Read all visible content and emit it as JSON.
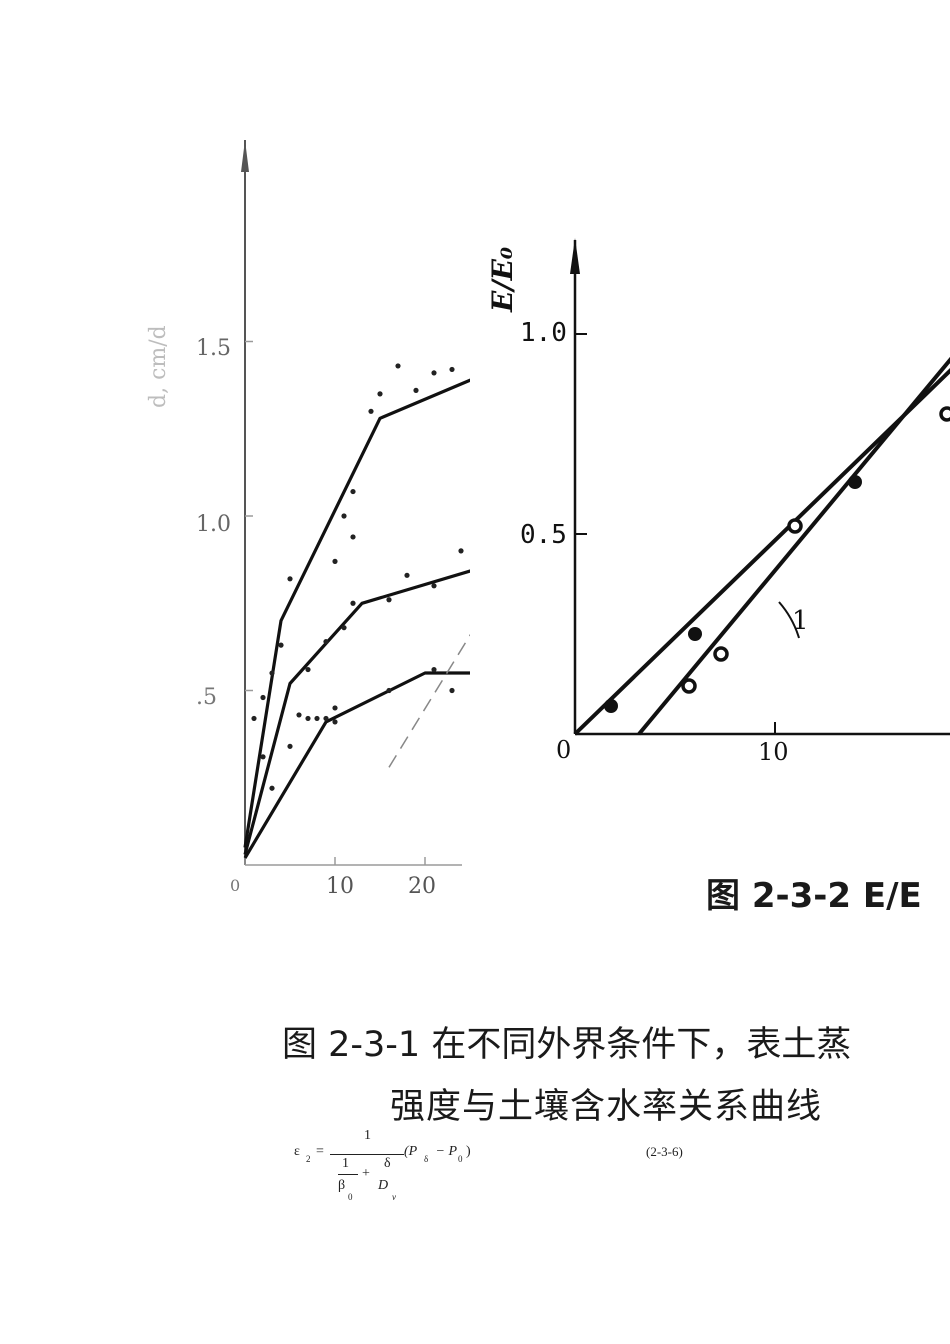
{
  "figure_left": {
    "y_axis_label": "d, cm/d",
    "y_ticks": [
      "1.5",
      "1.0",
      ".5"
    ],
    "x_ticks": [
      "0",
      "10",
      "20"
    ]
  },
  "figure_right": {
    "y_axis_label": "E/E₀",
    "y_ticks": [
      "1.0",
      "0.5"
    ],
    "x_ticks": [
      "0",
      "10"
    ],
    "curve_label": "1",
    "caption": "图 2-3-2    E/E"
  },
  "caption_main": {
    "line1": "图 2-3-1   在不同外界条件下，表土蒸",
    "line2": "强度与土壤含水率关系曲线"
  },
  "formula": {
    "lhs": "ε",
    "lhs_sub": "2",
    "eq": "=",
    "numerator": "1",
    "denom_a": "1",
    "denom_b": "δ",
    "plus": "+",
    "beta": "β",
    "beta_sub": "0",
    "dv": "D",
    "dv_sub": "v",
    "paren": "(P",
    "p_sub1": "δ",
    "minus": " − P",
    "p_sub2": "0",
    "close": ")",
    "number": "(2-3-6)"
  },
  "chart_data": [
    {
      "type": "line",
      "x_ticks": [
        0,
        10,
        20
      ],
      "y_ticks": [
        0.5,
        1.0,
        1.5
      ],
      "ylim": [
        0,
        1.9
      ],
      "xlim": [
        0,
        26
      ],
      "series": [
        {
          "points": [
            [
              0,
              0.05
            ],
            [
              4,
              0.7
            ],
            [
              15,
              1.28
            ],
            [
              26,
              1.4
            ]
          ]
        },
        {
          "points": [
            [
              0,
              0.03
            ],
            [
              5,
              0.52
            ],
            [
              13,
              0.75
            ],
            [
              26,
              0.85
            ]
          ]
        },
        {
          "points": [
            [
              0,
              0.02
            ],
            [
              9,
              0.41
            ],
            [
              20,
              0.55
            ],
            [
              26,
              0.55
            ]
          ]
        },
        {
          "dashed": true,
          "points": [
            [
              16,
              0.28
            ],
            [
              26,
              0.7
            ]
          ]
        }
      ],
      "scatter": [
        [
          1,
          0.42
        ],
        [
          2,
          0.48
        ],
        [
          3,
          0.55
        ],
        [
          2,
          0.31
        ],
        [
          3,
          0.22
        ],
        [
          4,
          0.63
        ],
        [
          5,
          0.82
        ],
        [
          6,
          0.43
        ],
        [
          7,
          0.56
        ],
        [
          8,
          0.42
        ],
        [
          9,
          0.42
        ],
        [
          10,
          0.41
        ],
        [
          10,
          0.87
        ],
        [
          11,
          1.0
        ],
        [
          12,
          0.94
        ],
        [
          12,
          1.07
        ],
        [
          9,
          0.64
        ],
        [
          11,
          0.68
        ],
        [
          12,
          0.75
        ],
        [
          10,
          0.45
        ],
        [
          14,
          1.3
        ],
        [
          15,
          1.35
        ],
        [
          17,
          1.43
        ],
        [
          19,
          1.36
        ],
        [
          21,
          1.41
        ],
        [
          23,
          1.42
        ],
        [
          16,
          0.76
        ],
        [
          18,
          0.83
        ],
        [
          21,
          0.8
        ],
        [
          24,
          0.9
        ],
        [
          16,
          0.5
        ],
        [
          21,
          0.56
        ],
        [
          23,
          0.5
        ],
        [
          5,
          0.34
        ],
        [
          7,
          0.42
        ]
      ]
    },
    {
      "type": "line",
      "x_ticks": [
        0,
        10
      ],
      "y_ticks": [
        0.5,
        1.0
      ],
      "ylim": [
        0,
        1.2
      ],
      "xlim": [
        0,
        19
      ],
      "series": [
        {
          "name": "1",
          "points": [
            [
              3.2,
              0
            ],
            [
              19,
              0.95
            ]
          ]
        },
        {
          "points": [
            [
              0,
              0
            ],
            [
              19,
              0.92
            ]
          ]
        }
      ],
      "scatter_filled": [
        [
          1.8,
          0.07
        ],
        [
          6,
          0.25
        ],
        [
          14,
          0.63
        ]
      ],
      "scatter_open": [
        [
          5.7,
          0.12
        ],
        [
          7.3,
          0.2
        ],
        [
          11,
          0.52
        ],
        [
          18.6,
          0.8
        ]
      ]
    }
  ]
}
